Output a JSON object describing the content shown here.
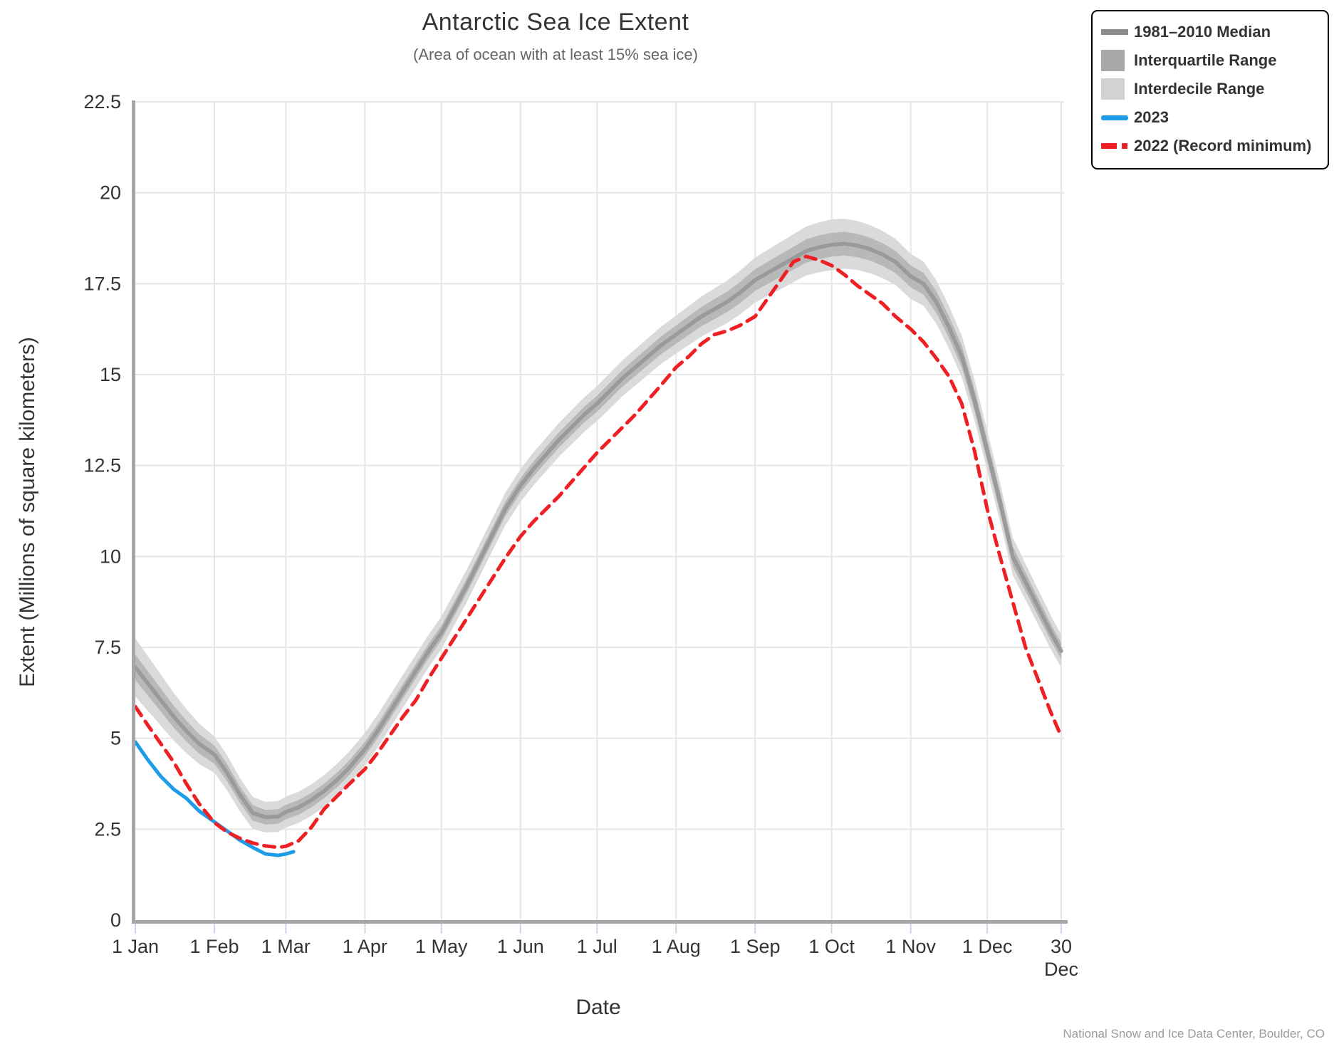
{
  "header": {
    "title": "Antarctic Sea Ice Extent",
    "subtitle": "(Area of ocean with at least 15% sea ice)"
  },
  "footer": {
    "credit": "National Snow and Ice Data Center, Boulder, CO"
  },
  "colors": {
    "median": "#9a9a9a",
    "iqr_band": "#b8b8b8",
    "idr_band": "#dadada",
    "blue_2023": "#1e9ce8",
    "red_2022": "#ee2024",
    "grid": "#e6e6e6",
    "axis_spine": "#a6a6a6",
    "tick_mark": "#ccd6eb",
    "tick_label": "#333333"
  },
  "legend": {
    "items": [
      {
        "label": "1981–2010 Median",
        "swatch": "medianline",
        "color": "#8b8b8b"
      },
      {
        "label": "Interquartile Range",
        "swatch": "box",
        "color": "#a9a9a9"
      },
      {
        "label": "Interdecile Range",
        "swatch": "box",
        "color": "#d2d2d2"
      },
      {
        "label": "2023",
        "swatch": "line",
        "color": "#1e9ce8"
      },
      {
        "label": "2022 (Record minimum)",
        "swatch": "dash",
        "color": "#ee2024"
      }
    ]
  },
  "chart_data": {
    "type": "line",
    "title": "Antarctic Sea Ice Extent",
    "subtitle": "(Area of ocean with at least 15% sea ice)",
    "xlabel": "Date",
    "ylabel": "Extent (Millions of square kilometers)",
    "grid": true,
    "legend_position": "top-right",
    "axis": {
      "x_min_day": 1,
      "x_max_day": 364,
      "y_min": 0,
      "y_max": 22.5
    },
    "y_ticks": [
      {
        "value": 0,
        "label": "0"
      },
      {
        "value": 2.5,
        "label": "2.5"
      },
      {
        "value": 5,
        "label": "5"
      },
      {
        "value": 7.5,
        "label": "7.5"
      },
      {
        "value": 10,
        "label": "10"
      },
      {
        "value": 12.5,
        "label": "12.5"
      },
      {
        "value": 15,
        "label": "15"
      },
      {
        "value": 17.5,
        "label": "17.5"
      },
      {
        "value": 20,
        "label": "20"
      },
      {
        "value": 22.5,
        "label": "22.5"
      }
    ],
    "x_ticks": [
      {
        "day": 1,
        "label": "1 Jan"
      },
      {
        "day": 32,
        "label": "1 Feb"
      },
      {
        "day": 60,
        "label": "1 Mar"
      },
      {
        "day": 91,
        "label": "1 Apr"
      },
      {
        "day": 121,
        "label": "1 May"
      },
      {
        "day": 152,
        "label": "1 Jun"
      },
      {
        "day": 182,
        "label": "1 Jul"
      },
      {
        "day": 213,
        "label": "1 Aug"
      },
      {
        "day": 244,
        "label": "1 Sep"
      },
      {
        "day": 274,
        "label": "1 Oct"
      },
      {
        "day": 305,
        "label": "1 Nov"
      },
      {
        "day": 335,
        "label": "1 Dec"
      },
      {
        "day": 364,
        "label": "30 Dec",
        "two_line": true,
        "line1": "30",
        "line2": "Dec"
      }
    ],
    "series": [
      {
        "name": "1981-2010 Median",
        "color": "#9a9a9a",
        "width": 5.5,
        "dash": null,
        "days": [
          1,
          6,
          11,
          16,
          21,
          26,
          32,
          37,
          42,
          47,
          52,
          57,
          60,
          65,
          70,
          75,
          80,
          85,
          91,
          96,
          101,
          106,
          111,
          116,
          121,
          126,
          131,
          136,
          141,
          146,
          152,
          157,
          162,
          167,
          172,
          177,
          182,
          187,
          192,
          197,
          202,
          207,
          213,
          218,
          223,
          228,
          233,
          238,
          244,
          249,
          254,
          259,
          264,
          269,
          274,
          279,
          284,
          289,
          294,
          299,
          305,
          310,
          315,
          320,
          325,
          330,
          335,
          340,
          345,
          350,
          355,
          360,
          364
        ],
        "values": [
          6.95,
          6.5,
          6.05,
          5.6,
          5.2,
          4.85,
          4.55,
          4.05,
          3.45,
          2.95,
          2.83,
          2.85,
          2.97,
          3.1,
          3.3,
          3.55,
          3.85,
          4.2,
          4.7,
          5.2,
          5.75,
          6.3,
          6.85,
          7.4,
          7.9,
          8.55,
          9.2,
          9.9,
          10.6,
          11.3,
          11.95,
          12.4,
          12.8,
          13.2,
          13.55,
          13.9,
          14.2,
          14.55,
          14.9,
          15.2,
          15.5,
          15.8,
          16.1,
          16.35,
          16.6,
          16.8,
          17.0,
          17.25,
          17.6,
          17.8,
          18.0,
          18.2,
          18.4,
          18.5,
          18.57,
          18.6,
          18.55,
          18.45,
          18.3,
          18.1,
          17.7,
          17.5,
          17.0,
          16.3,
          15.5,
          14.3,
          12.9,
          11.5,
          10.0,
          9.3,
          8.6,
          7.9,
          7.4
        ]
      },
      {
        "name": "2023",
        "color": "#1e9ce8",
        "width": 5,
        "dash": null,
        "days": [
          1,
          6,
          11,
          16,
          21,
          26,
          32,
          37,
          42,
          47,
          52,
          57,
          60,
          63
        ],
        "values": [
          4.9,
          4.4,
          3.95,
          3.6,
          3.35,
          3.0,
          2.7,
          2.45,
          2.2,
          2.0,
          1.82,
          1.78,
          1.82,
          1.88
        ]
      },
      {
        "name": "2022 (Record minimum)",
        "color": "#ee2024",
        "width": 5,
        "dash": [
          15,
          10
        ],
        "days": [
          1,
          6,
          11,
          16,
          21,
          26,
          32,
          37,
          42,
          47,
          52,
          57,
          60,
          65,
          70,
          75,
          80,
          85,
          91,
          96,
          101,
          106,
          111,
          116,
          121,
          126,
          131,
          136,
          141,
          146,
          152,
          157,
          162,
          167,
          172,
          177,
          182,
          187,
          192,
          197,
          202,
          207,
          213,
          218,
          223,
          228,
          233,
          238,
          244,
          249,
          254,
          259,
          264,
          269,
          274,
          279,
          284,
          289,
          294,
          299,
          305,
          310,
          315,
          320,
          325,
          330,
          335,
          340,
          345,
          350,
          355,
          360,
          364
        ],
        "values": [
          5.87,
          5.35,
          4.85,
          4.35,
          3.75,
          3.2,
          2.68,
          2.42,
          2.25,
          2.12,
          2.04,
          2.0,
          2.03,
          2.18,
          2.55,
          3.05,
          3.4,
          3.75,
          4.15,
          4.6,
          5.1,
          5.6,
          6.05,
          6.65,
          7.2,
          7.75,
          8.3,
          8.85,
          9.4,
          9.95,
          10.55,
          10.95,
          11.3,
          11.65,
          12.05,
          12.45,
          12.85,
          13.2,
          13.55,
          13.9,
          14.3,
          14.7,
          15.2,
          15.5,
          15.85,
          16.1,
          16.2,
          16.35,
          16.6,
          17.1,
          17.6,
          18.1,
          18.25,
          18.15,
          18.0,
          17.75,
          17.45,
          17.2,
          16.95,
          16.6,
          16.25,
          15.9,
          15.45,
          14.95,
          14.2,
          12.9,
          11.3,
          10.0,
          8.75,
          7.5,
          6.6,
          5.7,
          5.05
        ]
      }
    ],
    "bands": {
      "description": "Shaded ranges around 1981-2010 median, half-widths in million sq km",
      "iqr_color": "#b8b8b8",
      "idr_color": "#dadada",
      "knot_days": [
        1,
        32,
        52,
        91,
        121,
        152,
        182,
        213,
        244,
        274,
        305,
        335,
        364
      ],
      "iqr_half": [
        0.35,
        0.25,
        0.2,
        0.2,
        0.2,
        0.2,
        0.22,
        0.25,
        0.3,
        0.33,
        0.3,
        0.3,
        0.22
      ],
      "idr_half": [
        0.8,
        0.5,
        0.42,
        0.45,
        0.45,
        0.45,
        0.48,
        0.52,
        0.62,
        0.7,
        0.62,
        0.55,
        0.45
      ]
    }
  }
}
